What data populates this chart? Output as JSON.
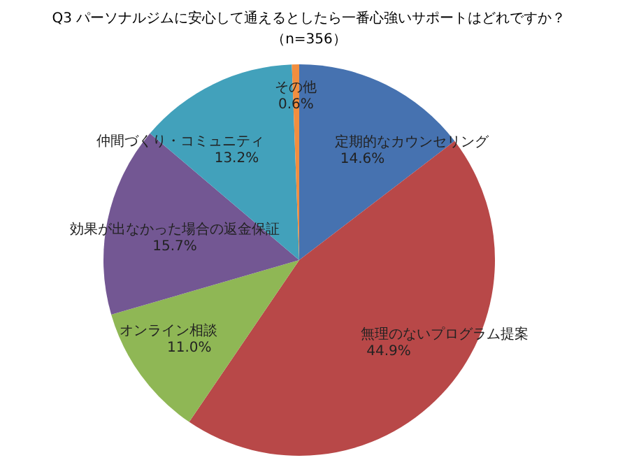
{
  "chart_data": {
    "type": "pie",
    "title": "Q3 パーソナルジムに安心して通えるとしたら一番心強いサポートはどれですか？",
    "subtitle": "（n=356）",
    "categories": [
      "定期的なカウンセリング",
      "無理のないプログラム提案",
      "オンライン相談",
      "効果が出なかった場合の返金保証",
      "仲間づくり・コミュニティ",
      "その他"
    ],
    "values": [
      14.6,
      44.9,
      11.0,
      15.7,
      13.2,
      0.6
    ],
    "colors": [
      "#4672b0",
      "#b84848",
      "#8fb755",
      "#735793",
      "#42a1bb",
      "#f28e3f"
    ],
    "value_labels": [
      "14.6%",
      "44.9%",
      "11.0%",
      "15.7%",
      "13.2%",
      "0.6%"
    ]
  }
}
